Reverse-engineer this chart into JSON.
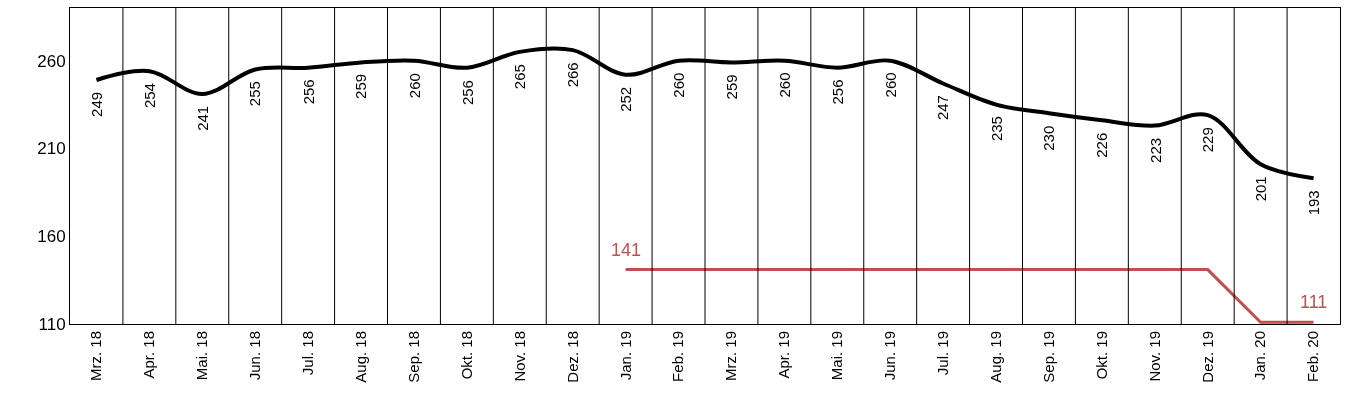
{
  "chart_data": {
    "type": "line",
    "categories": [
      "Mrz. 18",
      "Apr. 18",
      "Mai. 18",
      "Jun. 18",
      "Jul. 18",
      "Aug. 18",
      "Sep. 18",
      "Okt. 18",
      "Nov. 18",
      "Dez. 18",
      "Jan. 19",
      "Feb. 19",
      "Mrz. 19",
      "Apr. 19",
      "Mai. 19",
      "Jun. 19",
      "Jul. 19",
      "Aug. 19",
      "Sep. 19",
      "Okt. 19",
      "Nov. 19",
      "Dez. 19",
      "Jan. 20",
      "Feb. 20"
    ],
    "series": [
      {
        "color": "#000000",
        "values": [
          249,
          254,
          241,
          255,
          256,
          259,
          260,
          256,
          265,
          266,
          252,
          260,
          259,
          260,
          256,
          260,
          247,
          235,
          230,
          226,
          223,
          229,
          201,
          193
        ],
        "value_labels": [
          "249",
          "254",
          "241",
          "255",
          "256",
          "259",
          "260",
          "256",
          "265",
          "266",
          "252",
          "260",
          "259",
          "260",
          "256",
          "260",
          "247",
          "235",
          "230",
          "226",
          "223",
          "229",
          "201",
          "193"
        ]
      },
      {
        "color": "#c0504d",
        "values": [
          null,
          null,
          null,
          null,
          null,
          null,
          null,
          null,
          null,
          null,
          141,
          141,
          141,
          141,
          141,
          141,
          141,
          141,
          141,
          141,
          141,
          141,
          111,
          111
        ],
        "value_labels": [
          null,
          null,
          null,
          null,
          null,
          null,
          null,
          null,
          null,
          null,
          "141",
          null,
          null,
          null,
          null,
          null,
          null,
          null,
          null,
          null,
          null,
          null,
          null,
          "111"
        ]
      }
    ],
    "ylim": [
      110,
      290
    ],
    "yticks": [
      110,
      160,
      210,
      260
    ],
    "grid": "x",
    "marker": "none",
    "line_style": "solid"
  }
}
